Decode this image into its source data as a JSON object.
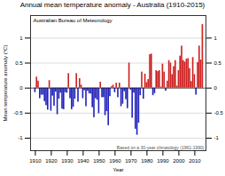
{
  "chart_data": {
    "type": "bar",
    "title": "Annual mean temperature anomaly - Australia (1910-2015)",
    "xlabel": "Year",
    "ylabel": "Mean temperature anomaly (°C)",
    "annotations": [
      "Australian Bureau of Meteorology",
      "Based on a 30-year climatology (1961-1990)"
    ],
    "x": [
      1910,
      1911,
      1912,
      1913,
      1914,
      1915,
      1916,
      1917,
      1918,
      1919,
      1920,
      1921,
      1922,
      1923,
      1924,
      1925,
      1926,
      1927,
      1928,
      1929,
      1930,
      1931,
      1932,
      1933,
      1934,
      1935,
      1936,
      1937,
      1938,
      1939,
      1940,
      1941,
      1942,
      1943,
      1944,
      1945,
      1946,
      1947,
      1948,
      1949,
      1950,
      1951,
      1952,
      1953,
      1954,
      1955,
      1956,
      1957,
      1958,
      1959,
      1960,
      1961,
      1962,
      1963,
      1964,
      1965,
      1966,
      1967,
      1968,
      1969,
      1970,
      1971,
      1972,
      1973,
      1974,
      1975,
      1976,
      1977,
      1978,
      1979,
      1980,
      1981,
      1982,
      1983,
      1984,
      1985,
      1986,
      1987,
      1988,
      1989,
      1990,
      1991,
      1992,
      1993,
      1994,
      1995,
      1996,
      1997,
      1998,
      1999,
      2000,
      2001,
      2002,
      2003,
      2004,
      2005,
      2006,
      2007,
      2008,
      2009,
      2010,
      2011,
      2012,
      2013,
      2014,
      2015
    ],
    "values": [
      -0.09,
      0.22,
      0.14,
      -0.21,
      -0.14,
      -0.14,
      -0.27,
      -0.35,
      -0.44,
      0.15,
      -0.46,
      -0.16,
      -0.36,
      -0.08,
      -0.53,
      -0.22,
      -0.1,
      -0.42,
      -0.43,
      -0.09,
      -0.1,
      0.29,
      -0.21,
      -0.43,
      -0.38,
      -0.22,
      0.29,
      -0.28,
      0.19,
      0.06,
      -0.21,
      -0.05,
      -0.37,
      -0.06,
      -0.11,
      -0.12,
      -0.39,
      -0.59,
      -0.21,
      -0.24,
      -0.51,
      0.12,
      -0.19,
      -0.19,
      -0.55,
      -0.47,
      -0.75,
      -0.17,
      0.03,
      0.06,
      -0.09,
      0.1,
      -0.19,
      0.1,
      -0.37,
      -0.32,
      -0.07,
      -0.23,
      -0.41,
      0.5,
      -0.04,
      -0.6,
      -0.1,
      -0.82,
      -0.94,
      -0.7,
      -0.15,
      0.32,
      -0.22,
      0.28,
      0.11,
      0.17,
      0.67,
      0.68,
      -0.15,
      -0.11,
      0.35,
      0.33,
      0.35,
      0.02,
      0.48,
      0.32,
      -0.06,
      0.14,
      0.55,
      0.5,
      0.27,
      0.43,
      0.55,
      0.04,
      0.35,
      0.64,
      0.84,
      0.55,
      0.52,
      0.58,
      0.59,
      0.39,
      0.13,
      0.61,
      0.27,
      -0.14,
      0.51,
      0.84,
      0.56,
      1.27
    ],
    "colors": [
      "#2222bb",
      "#cc2222",
      "#cc2222",
      "#2222bb",
      "#2222bb",
      "#2222bb",
      "#2222bb",
      "#2222bb",
      "#2222bb",
      "#cc2222",
      "#2222bb",
      "#2222bb",
      "#2222bb",
      "#2222bb",
      "#2222bb",
      "#2222bb",
      "#2222bb",
      "#2222bb",
      "#2222bb",
      "#2222bb",
      "#2222bb",
      "#cc2222",
      "#2222bb",
      "#2222bb",
      "#2222bb",
      "#2222bb",
      "#cc2222",
      "#2222bb",
      "#cc2222",
      "#cc2222",
      "#2222bb",
      "#2222bb",
      "#2222bb",
      "#2222bb",
      "#2222bb",
      "#2222bb",
      "#2222bb",
      "#2222bb",
      "#2222bb",
      "#2222bb",
      "#2222bb",
      "#cc2222",
      "#2222bb",
      "#2222bb",
      "#2222bb",
      "#2222bb",
      "#2222bb",
      "#2222bb",
      "#cc2222",
      "#cc2222",
      "#2222bb",
      "#cc2222",
      "#2222bb",
      "#cc2222",
      "#2222bb",
      "#2222bb",
      "#2222bb",
      "#2222bb",
      "#2222bb",
      "#cc2222",
      "#2222bb",
      "#2222bb",
      "#2222bb",
      "#2222bb",
      "#2222bb",
      "#2222bb",
      "#2222bb",
      "#cc2222",
      "#2222bb",
      "#cc2222",
      "#cc2222",
      "#cc2222",
      "#cc2222",
      "#cc2222",
      "#2222bb",
      "#2222bb",
      "#cc2222",
      "#cc2222",
      "#cc2222",
      "#cc2222",
      "#cc2222",
      "#cc2222",
      "#2222bb",
      "#cc2222",
      "#cc2222",
      "#cc2222",
      "#cc2222",
      "#cc2222",
      "#cc2222",
      "#cc2222",
      "#cc2222",
      "#cc2222",
      "#cc2222",
      "#cc2222",
      "#cc2222",
      "#cc2222",
      "#cc2222",
      "#cc2222",
      "#cc2222",
      "#cc2222",
      "#cc2222",
      "#2222bb",
      "#cc2222",
      "#cc2222",
      "#cc2222",
      "#cc2222"
    ],
    "xlim": [
      1907,
      2017
    ],
    "xticks": [
      1910,
      1920,
      1930,
      1940,
      1950,
      1960,
      1970,
      1980,
      1990,
      2000,
      2010
    ],
    "ylim": [
      -1.25,
      1.45
    ],
    "yticks": [
      -1,
      -0.5,
      0,
      0.5,
      1
    ],
    "grid": true
  }
}
